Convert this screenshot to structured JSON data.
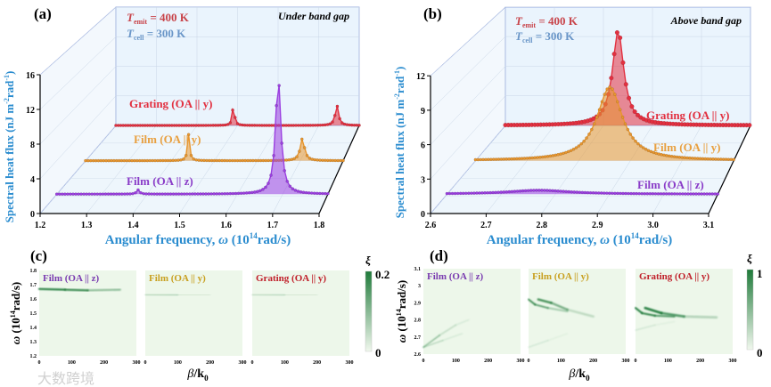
{
  "chart_data": [
    {
      "type": "line",
      "panel_label": "(a)",
      "annotation": "Under band gap",
      "t_emit": {
        "symbol": "T",
        "sub": "emit",
        "value": " = 400 K"
      },
      "t_cell": {
        "symbol": "T",
        "sub": "cell",
        "value": " = 300 K"
      },
      "xlabel": {
        "main": "Angular frequency, ",
        "omega": "ω",
        "pre": " (10",
        "sup": "14",
        "post": "rad/s)"
      },
      "ylabel": {
        "main": "Spectral heat flux (nJ m",
        "sup1": "-2",
        "mid": "rad",
        "sup2": "-1",
        "post": ")"
      },
      "xlim": [
        1.2,
        1.8
      ],
      "ylim": [
        0,
        16
      ],
      "xticks": [
        "1.2",
        "1.3",
        "1.4",
        "1.5",
        "1.6",
        "1.7",
        "1.8"
      ],
      "yticks": [
        "0",
        "4",
        "8",
        "12",
        "16"
      ],
      "series": [
        {
          "name": "Film (OA || z)",
          "color": "#9b3fe0",
          "depth": 0.22,
          "step": 0.006,
          "peaks": [
            [
              1.38,
              0.5,
              0.004
            ],
            [
              1.69,
              14.0,
              0.007
            ]
          ]
        },
        {
          "name": "Film (OA || y)",
          "color": "#e8962e",
          "depth": 0.6,
          "step": 0.006,
          "peaks": [
            [
              1.44,
              3.3,
              0.003
            ],
            [
              1.705,
              2.8,
              0.006
            ]
          ]
        },
        {
          "name": "Grating (OA || y)",
          "color": "#e23040",
          "depth": 1.0,
          "step": 0.006,
          "peaks": [
            [
              1.49,
              3.0,
              0.003
            ],
            [
              1.745,
              2.7,
              0.005
            ]
          ]
        }
      ]
    },
    {
      "type": "line",
      "panel_label": "(b)",
      "annotation": "Above band gap",
      "t_emit": {
        "symbol": "T",
        "sub": "emit",
        "value": " = 400 K"
      },
      "t_cell": {
        "symbol": "T",
        "sub": "cell",
        "value": " = 300 K"
      },
      "xlabel": {
        "main": "Angular frequency, ",
        "omega": "ω",
        "pre": " (10",
        "sup": "14",
        "post": "rad/s)"
      },
      "ylabel": {
        "main": "Spectral heat flux (nJ m",
        "sup1": "-2",
        "mid": "rad",
        "sup2": "-1",
        "post": ")"
      },
      "xlim": [
        2.6,
        3.1
      ],
      "ylim": [
        0,
        12
      ],
      "xticks": [
        "2.6",
        "2.7",
        "2.8",
        "2.9",
        "3.0",
        "3.1"
      ],
      "yticks": [
        "0",
        "3",
        "6",
        "9",
        "12"
      ],
      "series": [
        {
          "name": "Film (OA || z)",
          "color": "#9b3fe0",
          "depth": 0.22,
          "step": 0.005,
          "peaks": [
            [
              2.77,
              0.35,
              0.07
            ]
          ]
        },
        {
          "name": "Film (OA || y)",
          "color": "#e8962e",
          "depth": 0.6,
          "step": 0.005,
          "peaks": [
            [
              2.86,
              7.0,
              0.03
            ]
          ]
        },
        {
          "name": "Grating (OA || y)",
          "color": "#e23040",
          "depth": 1.0,
          "step": 0.006,
          "peaks": [
            [
              2.83,
              9.6,
              0.014
            ]
          ]
        }
      ]
    },
    {
      "type": "heatmap",
      "panel_label": "(c)",
      "ylabel": {
        "omega": "ω",
        "pre": " (10",
        "sup": "14",
        "post": "rad/s)"
      },
      "xlabel": {
        "beta": "β",
        "slash": "/k",
        "sub": "0"
      },
      "xlim": [
        0,
        300
      ],
      "ylim": [
        1.2,
        1.8
      ],
      "xticks": [
        "0",
        "100",
        "200",
        "300"
      ],
      "yticks": [
        "1.2",
        "1.3",
        "1.4",
        "1.5",
        "1.6",
        "1.7",
        "1.8"
      ],
      "colorbar": {
        "title": "ξ",
        "max": "0.2",
        "min": "0"
      },
      "panels": [
        {
          "name": "Film (OA || z)",
          "color": "#7a3cb0",
          "features": [
            {
              "pts": [
                [
                  0,
                  1.67
                ],
                [
                  80,
                  1.665
                ],
                [
                  150,
                  1.66
                ],
                [
                  250,
                  1.665
                ],
                [
                  300,
                  1.665
                ]
              ],
              "fade": [
                0.95,
                0.9,
                0.8,
                0.1,
                0.05
              ],
              "w": 2.2
            }
          ]
        },
        {
          "name": "Film (OA || y)",
          "color": "#c8a020",
          "features": [
            {
              "pts": [
                [
                  0,
                  1.8
                ],
                [
                  0,
                  1.2
                ]
              ],
              "fade": [
                0.9,
                0.9
              ],
              "w": 1.5
            },
            {
              "pts": [
                [
                  0,
                  1.63
                ],
                [
                  100,
                  1.628
                ],
                [
                  200,
                  1.627
                ],
                [
                  300,
                  1.627
                ]
              ],
              "fade": [
                0.5,
                0.3,
                0.15,
                0.05
              ],
              "w": 1.2
            },
            {
              "pts": [
                [
                  0,
                  1.345
                ],
                [
                  300,
                  1.345
                ]
              ],
              "fade": [
                0.15,
                0.05
              ],
              "w": 1
            }
          ]
        },
        {
          "name": "Grating (OA || y)",
          "color": "#c0202a",
          "features": [
            {
              "pts": [
                [
                  0,
                  1.8
                ],
                [
                  0,
                  1.2
                ]
              ],
              "fade": [
                0.9,
                0.9
              ],
              "w": 1.5
            },
            {
              "pts": [
                [
                  0,
                  1.63
                ],
                [
                  100,
                  1.628
                ],
                [
                  200,
                  1.627
                ],
                [
                  300,
                  1.627
                ]
              ],
              "fade": [
                0.4,
                0.3,
                0.15,
                0.05
              ],
              "w": 1.2
            },
            {
              "pts": [
                [
                  0,
                  1.345
                ],
                [
                  300,
                  1.345
                ]
              ],
              "fade": [
                0.15,
                0.05
              ],
              "w": 1
            }
          ]
        }
      ]
    },
    {
      "type": "heatmap",
      "panel_label": "(d)",
      "ylabel": {
        "omega": "ω",
        "pre": " (10",
        "sup": "14",
        "post": "rad/s)"
      },
      "xlabel": {
        "beta": "β",
        "slash": "/k",
        "sub": "0"
      },
      "xlim": [
        0,
        300
      ],
      "ylim": [
        2.6,
        3.1
      ],
      "xticks": [
        "0",
        "100",
        "200",
        "300"
      ],
      "yticks": [
        "2.6",
        "2.7",
        "2.8",
        "2.9",
        "3",
        "3.1"
      ],
      "colorbar": {
        "title": "ξ",
        "max": "1",
        "min": "0"
      },
      "panels": [
        {
          "name": "Film (OA || z)",
          "color": "#7a3cb0",
          "features": [
            {
              "pts": [
                [
                  0,
                  2.64
                ],
                [
                  50,
                  2.71
                ],
                [
                  100,
                  2.77
                ],
                [
                  140,
                  2.8
                ]
              ],
              "fade": [
                0.6,
                0.3,
                0.15,
                0.05
              ],
              "w": 1.5
            },
            {
              "pts": [
                [
                  0,
                  2.64
                ],
                [
                  60,
                  2.68
                ],
                [
                  120,
                  2.72
                ]
              ],
              "fade": [
                0.4,
                0.2,
                0.05
              ],
              "w": 1.2
            }
          ]
        },
        {
          "name": "Film (OA || y)",
          "color": "#c8a020",
          "features": [
            {
              "pts": [
                [
                  0,
                  3.1
                ],
                [
                  0,
                  2.6
                ]
              ],
              "fade": [
                0.9,
                0.9
              ],
              "w": 1.5
            },
            {
              "pts": [
                [
                  0,
                  2.92
                ],
                [
                  30,
                  2.92
                ],
                [
                  70,
                  2.9
                ],
                [
                  120,
                  2.86
                ],
                [
                  200,
                  2.82
                ]
              ],
              "fade": [
                0.9,
                0.9,
                0.7,
                0.4,
                0.05
              ],
              "w": 2.5
            },
            {
              "pts": [
                [
                  0,
                  2.92
                ],
                [
                  20,
                  2.89
                ],
                [
                  60,
                  2.87
                ],
                [
                  120,
                  2.85
                ]
              ],
              "fade": [
                0.8,
                0.8,
                0.5,
                0.2
              ],
              "w": 2
            },
            {
              "pts": [
                [
                  0,
                  2.64
                ],
                [
                  60,
                  2.68
                ],
                [
                  120,
                  2.72
                ]
              ],
              "fade": [
                0.2,
                0.1,
                0.03
              ],
              "w": 1.2
            }
          ]
        },
        {
          "name": "Grating (OA || y)",
          "color": "#c0202a",
          "features": [
            {
              "pts": [
                [
                  0,
                  3.1
                ],
                [
                  0,
                  2.6
                ]
              ],
              "fade": [
                0.9,
                0.9
              ],
              "w": 1.5
            },
            {
              "pts": [
                [
                  0,
                  2.87
                ],
                [
                  30,
                  2.87
                ],
                [
                  80,
                  2.84
                ],
                [
                  150,
                  2.82
                ],
                [
                  250,
                  2.815
                ]
              ],
              "fade": [
                0.95,
                0.95,
                0.9,
                0.5,
                0.05
              ],
              "w": 2.8
            },
            {
              "pts": [
                [
                  0,
                  2.87
                ],
                [
                  20,
                  2.84
                ],
                [
                  60,
                  2.825
                ],
                [
                  120,
                  2.82
                ]
              ],
              "fade": [
                0.9,
                0.9,
                0.8,
                0.6
              ],
              "w": 2.2
            },
            {
              "pts": [
                [
                  0,
                  2.74
                ],
                [
                  60,
                  2.77
                ],
                [
                  120,
                  2.79
                ]
              ],
              "fade": [
                0.2,
                0.1,
                0.03
              ],
              "w": 1.2
            }
          ]
        }
      ]
    }
  ],
  "watermark": "大数跨境"
}
